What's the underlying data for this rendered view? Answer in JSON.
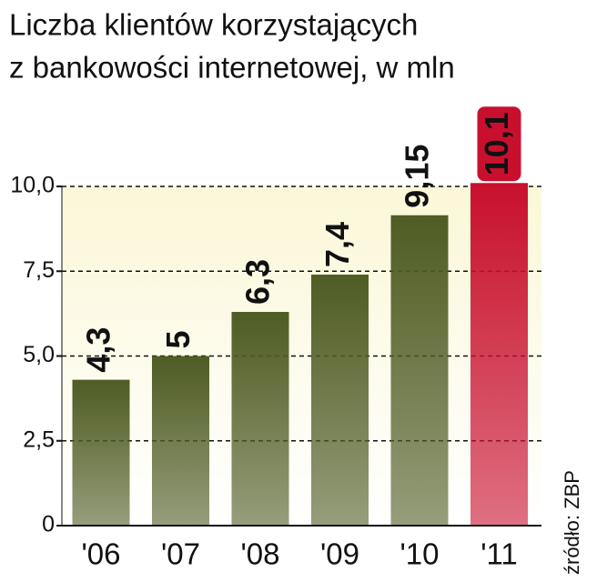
{
  "chart_data": {
    "type": "bar",
    "title": [
      "Liczba  klientów korzystających",
      "z bankowości internetowej, w mln"
    ],
    "source": "źródło: ZBP",
    "categories": [
      "'06",
      "'07",
      "'08",
      "'09",
      "'10",
      "'11"
    ],
    "values": [
      4.3,
      5,
      6.3,
      7.4,
      9.15,
      10.1
    ],
    "value_labels": [
      "4,3",
      "5",
      "6,3",
      "7,4",
      "9,15",
      "10,1"
    ],
    "colors": [
      "#4f5c24",
      "#4f5c24",
      "#4f5c24",
      "#4f5c24",
      "#4f5c24",
      "#c8102e"
    ],
    "ylim": [
      0,
      10
    ],
    "yticks": [
      0,
      {
        "value": 2.5,
        "label": "2,5"
      },
      {
        "value": 5,
        "label": "5,0"
      },
      {
        "value": 7.5,
        "label": "7,5"
      },
      {
        "value": 10,
        "label": "10,0"
      }
    ],
    "grid": true
  }
}
